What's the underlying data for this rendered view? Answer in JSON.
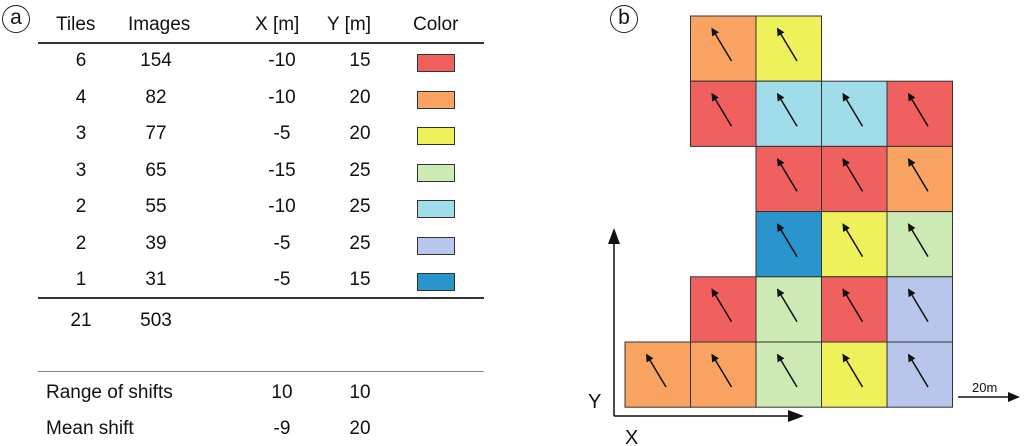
{
  "panel_a": {
    "label": "a",
    "headers": {
      "tiles": "Tiles",
      "images": "Images",
      "x": "X [m]",
      "y": "Y [m]",
      "color": "Color"
    },
    "rows": [
      {
        "tiles": "6",
        "images": "154",
        "x": "-10",
        "y": "15",
        "color": "#f0605e"
      },
      {
        "tiles": "4",
        "images": "82",
        "x": "-10",
        "y": "20",
        "color": "#f9a362"
      },
      {
        "tiles": "3",
        "images": "77",
        "x": "-5",
        "y": "20",
        "color": "#eef15a"
      },
      {
        "tiles": "3",
        "images": "65",
        "x": "-15",
        "y": "25",
        "color": "#cdeab5"
      },
      {
        "tiles": "2",
        "images": "55",
        "x": "-10",
        "y": "25",
        "color": "#a0dce9"
      },
      {
        "tiles": "2",
        "images": "39",
        "x": "-5",
        "y": "25",
        "color": "#b8c6ec"
      },
      {
        "tiles": "1",
        "images": "31",
        "x": "-5",
        "y": "15",
        "color": "#2a95cc"
      }
    ],
    "totals": {
      "tiles": "21",
      "images": "503"
    },
    "summary": [
      {
        "label": "Range of shifts",
        "x": "10",
        "y": "10"
      },
      {
        "label": "Mean shift",
        "x": "-9",
        "y": "20"
      }
    ]
  },
  "panel_b": {
    "label": "b",
    "axis_y_label": "Y",
    "axis_x_label": "X",
    "scale_label": "20m",
    "grid_cols": 5,
    "grid_rows": 6,
    "tiles": [
      {
        "col": 1,
        "row": 0,
        "color": "#f9a362"
      },
      {
        "col": 2,
        "row": 0,
        "color": "#eef15a"
      },
      {
        "col": 1,
        "row": 1,
        "color": "#f0605e"
      },
      {
        "col": 2,
        "row": 1,
        "color": "#a0dce9"
      },
      {
        "col": 3,
        "row": 1,
        "color": "#a0dce9"
      },
      {
        "col": 4,
        "row": 1,
        "color": "#f0605e"
      },
      {
        "col": 2,
        "row": 2,
        "color": "#f0605e"
      },
      {
        "col": 3,
        "row": 2,
        "color": "#f0605e"
      },
      {
        "col": 4,
        "row": 2,
        "color": "#f9a362"
      },
      {
        "col": 2,
        "row": 3,
        "color": "#2a95cc"
      },
      {
        "col": 3,
        "row": 3,
        "color": "#eef15a"
      },
      {
        "col": 4,
        "row": 3,
        "color": "#cdeab5"
      },
      {
        "col": 1,
        "row": 4,
        "color": "#f0605e"
      },
      {
        "col": 2,
        "row": 4,
        "color": "#cdeab5"
      },
      {
        "col": 3,
        "row": 4,
        "color": "#f0605e"
      },
      {
        "col": 4,
        "row": 4,
        "color": "#b8c6ec"
      },
      {
        "col": 0,
        "row": 5,
        "color": "#f9a362"
      },
      {
        "col": 1,
        "row": 5,
        "color": "#f9a362"
      },
      {
        "col": 2,
        "row": 5,
        "color": "#cdeab5"
      },
      {
        "col": 3,
        "row": 5,
        "color": "#eef15a"
      },
      {
        "col": 4,
        "row": 5,
        "color": "#b8c6ec"
      }
    ]
  }
}
